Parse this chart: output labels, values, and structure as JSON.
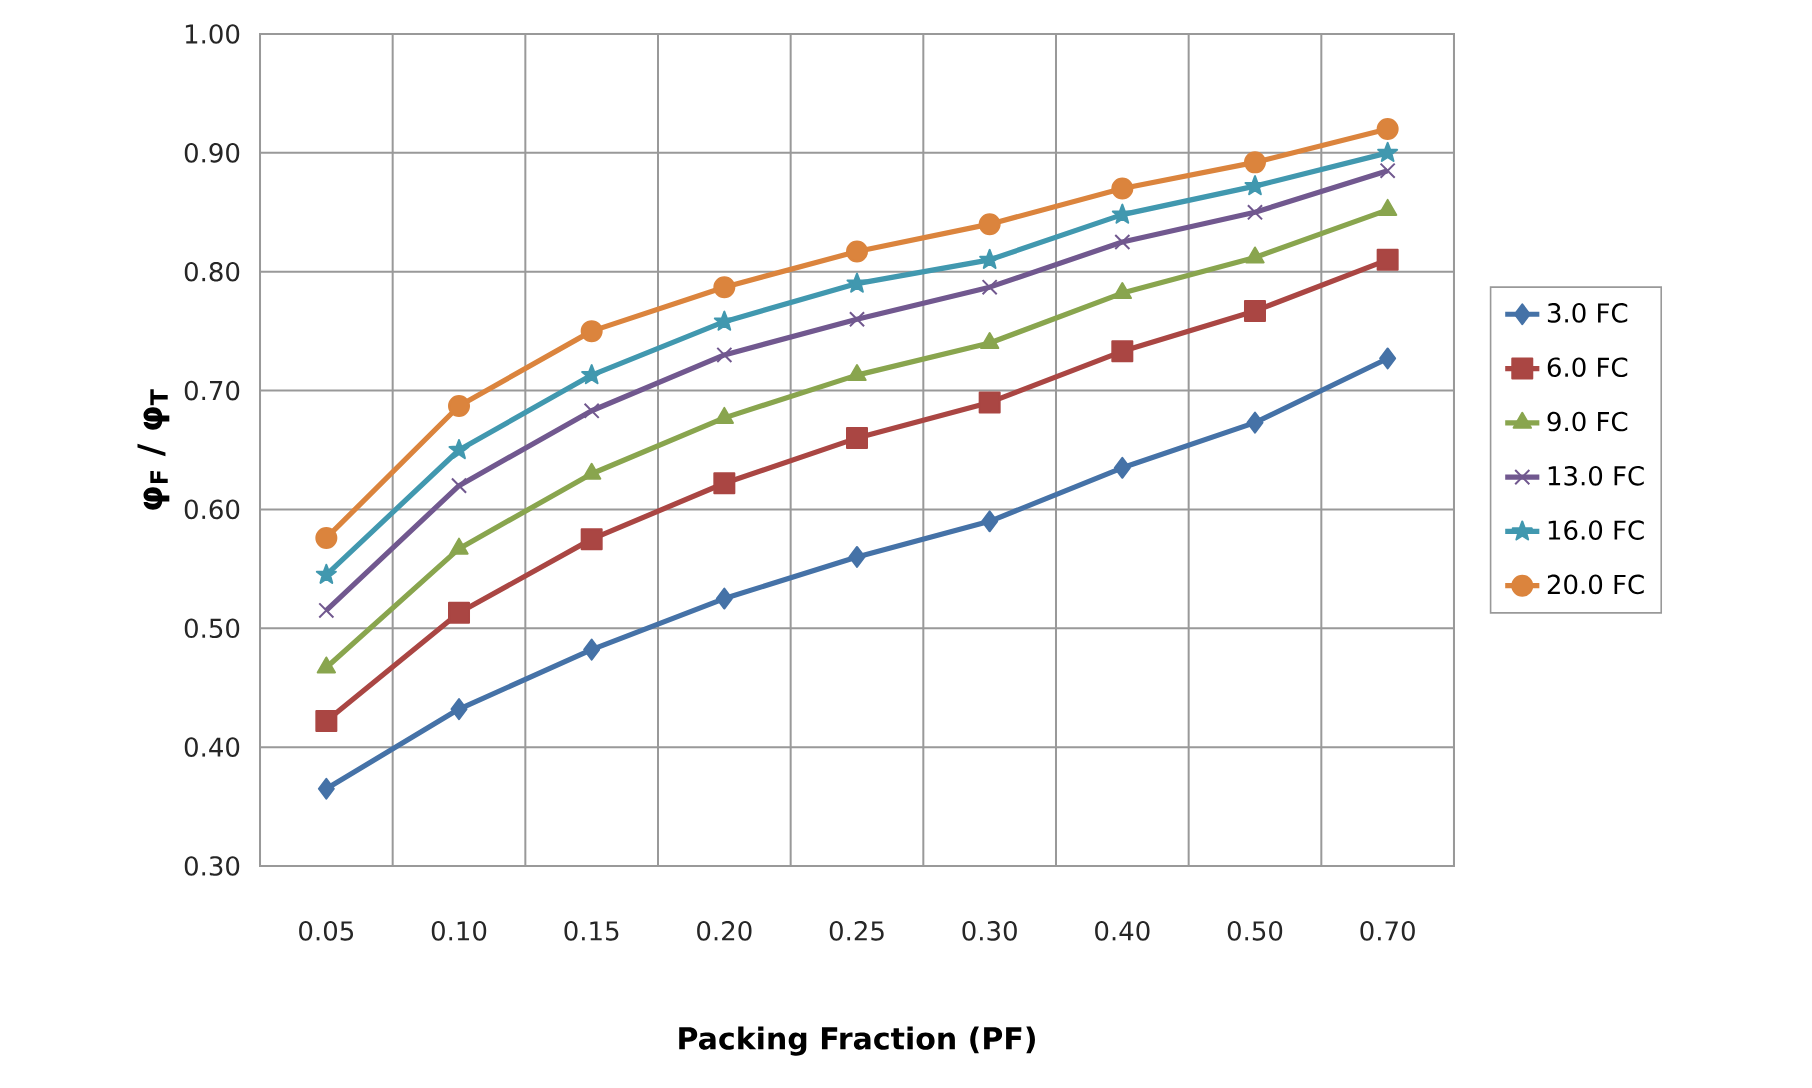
{
  "chart_data": {
    "type": "line",
    "xlabel": "Packing Fraction (PF)",
    "ylabel": "φ$_{F}$ / φ$_{T}$",
    "categories": [
      "0.05",
      "0.10",
      "0.15",
      "0.20",
      "0.25",
      "0.30",
      "0.40",
      "0.50",
      "0.70"
    ],
    "ylim": [
      0.3,
      1.0
    ],
    "yticks": [
      {
        "value": 0.3,
        "label": "0.30"
      },
      {
        "value": 0.4,
        "label": "0.40"
      },
      {
        "value": 0.5,
        "label": "0.50"
      },
      {
        "value": 0.6,
        "label": "0.60"
      },
      {
        "value": 0.7,
        "label": "0.70"
      },
      {
        "value": 0.8,
        "label": "0.80"
      },
      {
        "value": 0.9,
        "label": "0.90"
      },
      {
        "value": 1.0,
        "label": "1.00"
      }
    ],
    "grid": true,
    "legend": "right",
    "line_style": "solid",
    "series": [
      {
        "name": "3.0 FC",
        "color": "#4572a7",
        "marker": "diamond",
        "values": [
          0.365,
          0.432,
          0.482,
          0.525,
          0.56,
          0.59,
          0.635,
          0.673,
          0.727
        ]
      },
      {
        "name": "6.0 FC",
        "color": "#aa4643",
        "marker": "square",
        "values": [
          0.422,
          0.513,
          0.575,
          0.622,
          0.66,
          0.69,
          0.733,
          0.767,
          0.81
        ]
      },
      {
        "name": "9.0 FC",
        "color": "#89a54e",
        "marker": "triangle",
        "values": [
          0.467,
          0.567,
          0.63,
          0.677,
          0.713,
          0.74,
          0.782,
          0.812,
          0.852
        ]
      },
      {
        "name": "13.0 FC",
        "color": "#71588f",
        "marker": "cross",
        "values": [
          0.515,
          0.62,
          0.683,
          0.73,
          0.76,
          0.787,
          0.825,
          0.85,
          0.885
        ]
      },
      {
        "name": "16.0 FC",
        "color": "#4198af",
        "marker": "star",
        "values": [
          0.545,
          0.65,
          0.713,
          0.758,
          0.79,
          0.81,
          0.848,
          0.872,
          0.9
        ]
      },
      {
        "name": "20.0 FC",
        "color": "#db843d",
        "marker": "circle",
        "values": [
          0.576,
          0.687,
          0.75,
          0.787,
          0.817,
          0.84,
          0.87,
          0.892,
          0.92
        ]
      }
    ]
  }
}
